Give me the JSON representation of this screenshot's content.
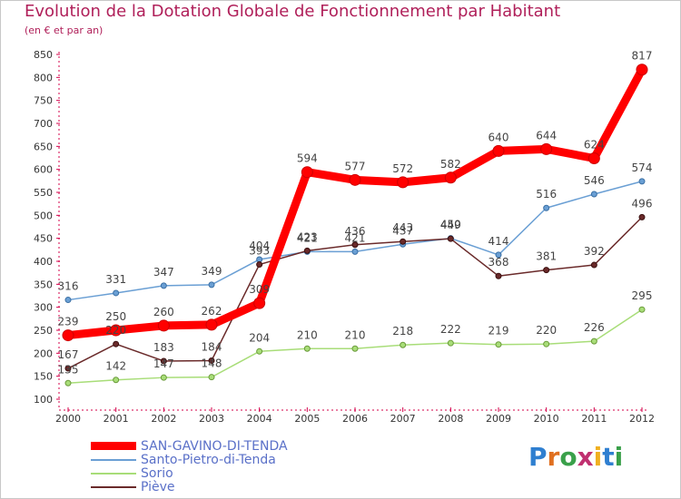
{
  "header": {
    "title": "Evolution de la Dotation Globale de Fonctionnement par Habitant",
    "subtitle": "(en € et par an)"
  },
  "logo": {
    "text": "Proxiti"
  },
  "chart_data": {
    "type": "line",
    "x": [
      "2000",
      "2001",
      "2002",
      "2003",
      "2004",
      "2005",
      "2006",
      "2007",
      "2008",
      "2009",
      "2010",
      "2011",
      "2012"
    ],
    "ylim": [
      100,
      850
    ],
    "yticks": [
      100,
      150,
      200,
      250,
      300,
      350,
      400,
      450,
      500,
      550,
      600,
      650,
      700,
      750,
      800,
      850
    ],
    "grid": false,
    "legend": "bottom-left",
    "series": [
      {
        "name": "SAN-GAVINO-DI-TENDA",
        "color": "#ff0000",
        "values": [
          239,
          250,
          260,
          262,
          309,
          594,
          577,
          572,
          582,
          640,
          644,
          624,
          817
        ]
      },
      {
        "name": "Santo-Pietro-di-Tenda",
        "color": "#6a9fd4",
        "values": [
          316,
          331,
          347,
          349,
          404,
          421,
          421,
          437,
          450,
          414,
          516,
          546,
          574
        ]
      },
      {
        "name": "Sorio",
        "color": "#a8dd78",
        "values": [
          135,
          142,
          147,
          148,
          204,
          210,
          210,
          218,
          222,
          219,
          220,
          226,
          295
        ]
      },
      {
        "name": "Piève",
        "color": "#6a2a2a",
        "values": [
          167,
          220,
          183,
          184,
          393,
          423,
          436,
          443,
          449,
          368,
          381,
          392,
          496
        ]
      }
    ]
  }
}
